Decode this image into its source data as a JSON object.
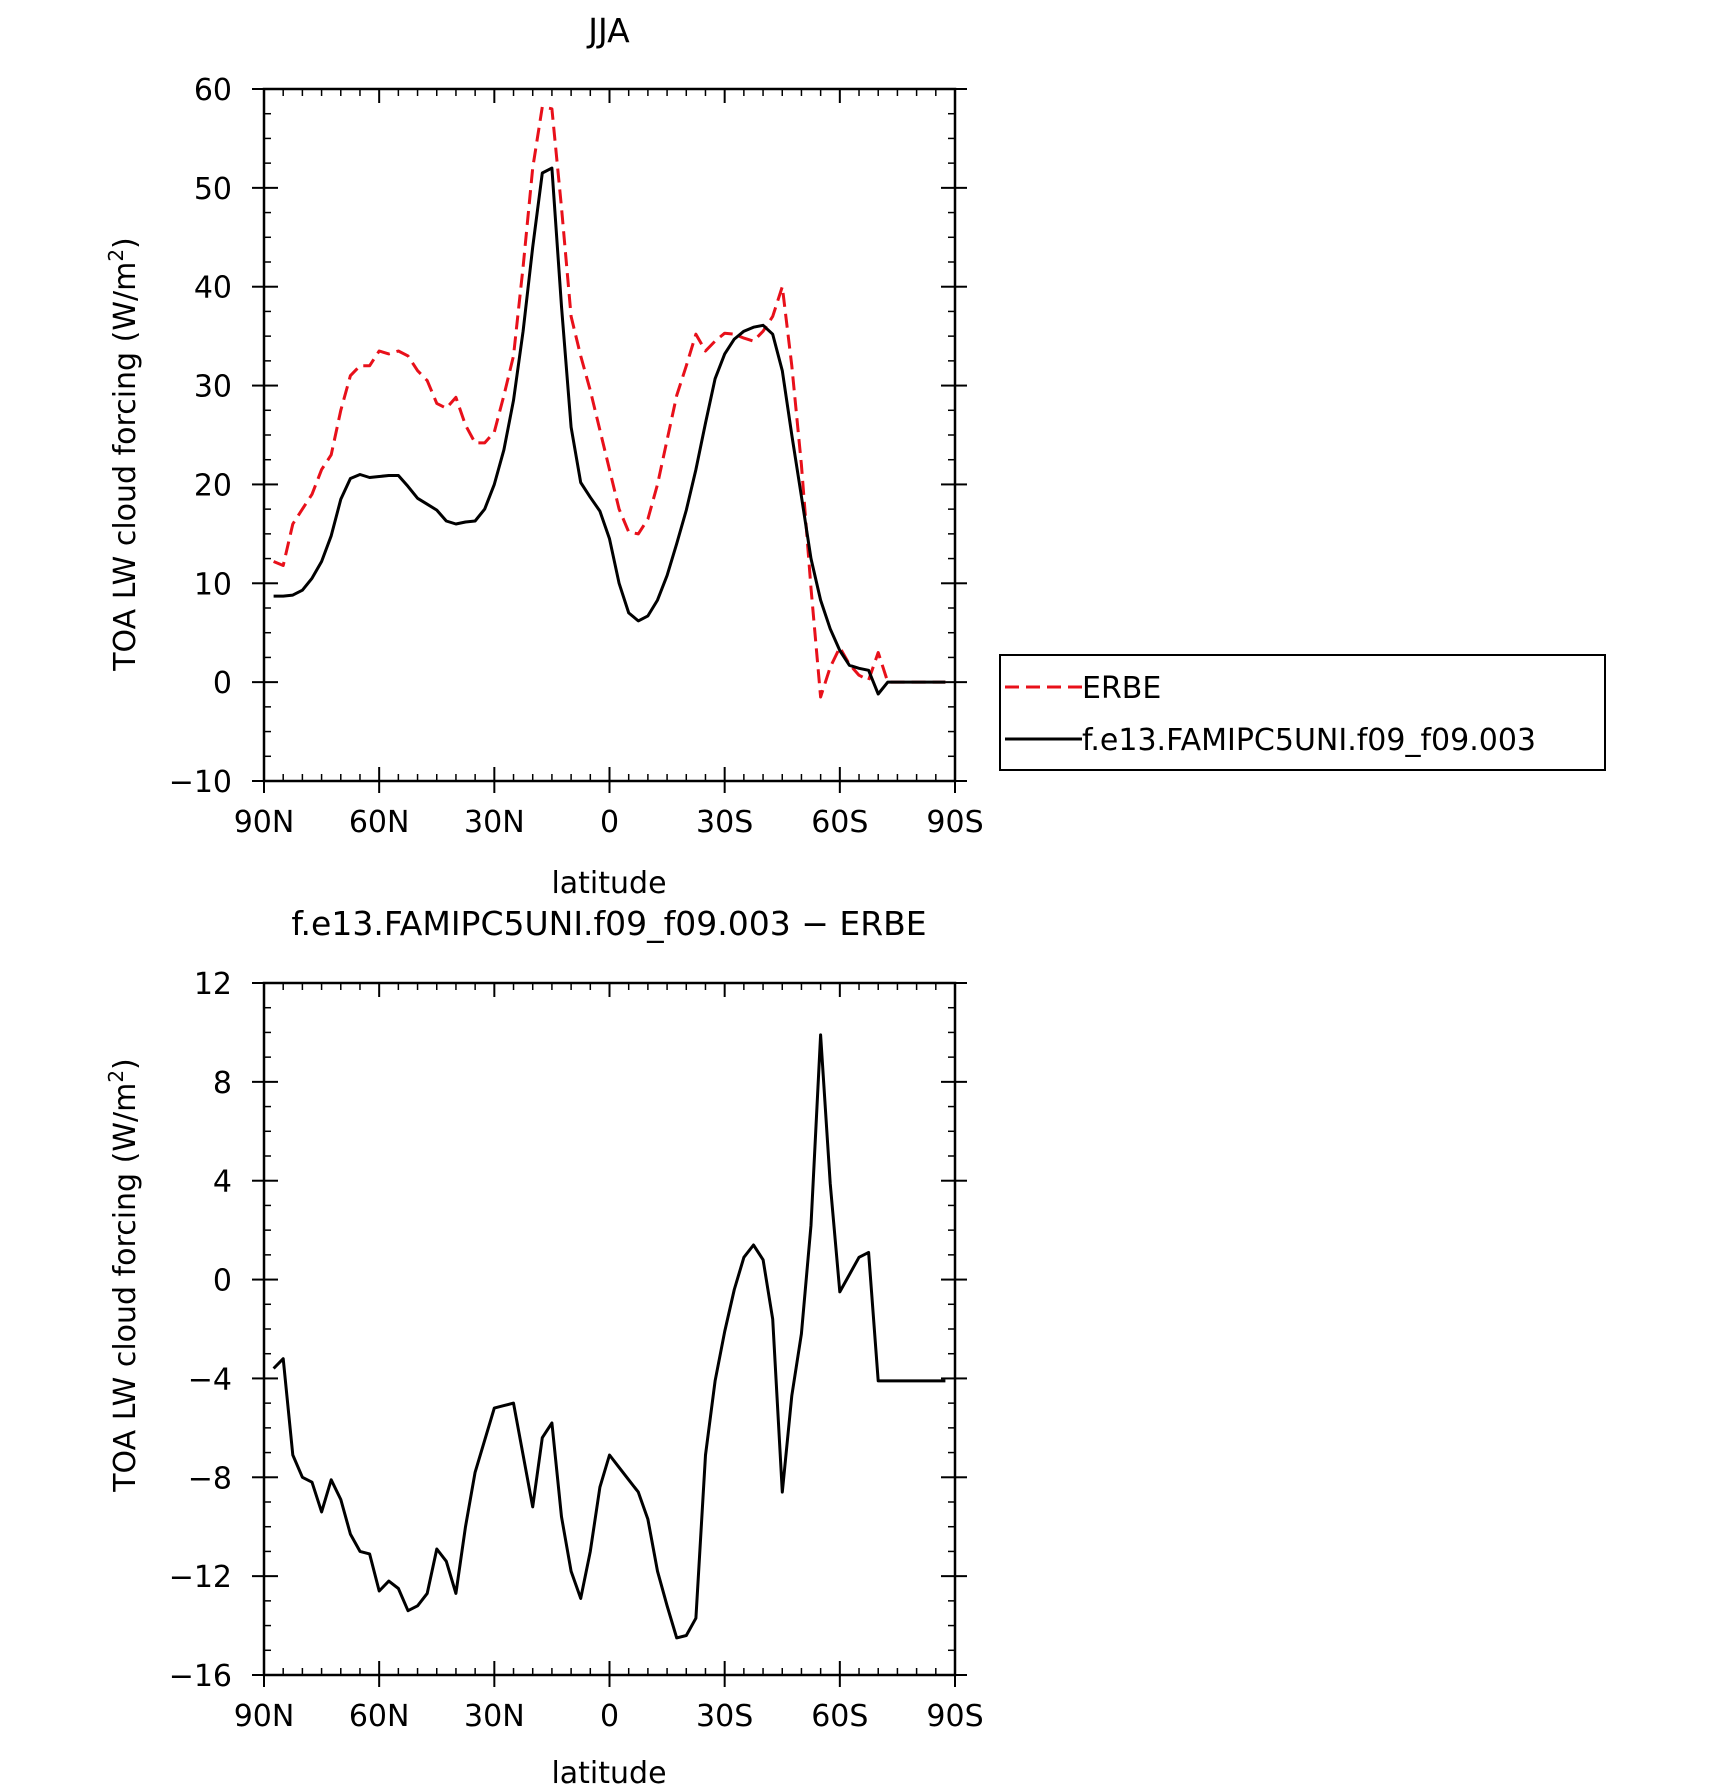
{
  "chart_data": [
    {
      "type": "line",
      "title": "JJA",
      "xlabel": "latitude",
      "ylabel": "TOA LW cloud forcing (W/m²)",
      "ylabel_main": "TOA LW cloud forcing (W/m",
      "ylabel_sup": "2",
      "ylabel_end": ")",
      "xlim": [
        90,
        -90
      ],
      "ylim": [
        -10,
        60
      ],
      "xticks": [
        90,
        60,
        30,
        0,
        -30,
        -60,
        -90
      ],
      "xtick_labels": [
        "90N",
        "60N",
        "30N",
        "0",
        "30S",
        "60S",
        "90S"
      ],
      "yticks": [
        -10,
        0,
        10,
        20,
        30,
        40,
        50,
        60
      ],
      "ytick_labels": [
        "−10",
        "0",
        "10",
        "20",
        "30",
        "40",
        "50",
        "60"
      ],
      "legend": {
        "placement": "right",
        "entries": [
          "ERBE",
          "f.e13.FAMIPC5UNI.f09_f09.003"
        ]
      },
      "series": [
        {
          "name": "ERBE",
          "color": "#e8101a",
          "dash": "dashed",
          "x": [
            87.5,
            85,
            82.5,
            80,
            77.5,
            75,
            72.5,
            70,
            67.5,
            65,
            62.5,
            60,
            57.5,
            55,
            52.5,
            50,
            47.5,
            45,
            42.5,
            40,
            37.5,
            35,
            32.5,
            30,
            27.5,
            25,
            22.5,
            20,
            17.5,
            15,
            12.5,
            10,
            7.5,
            5,
            2.5,
            0,
            -2.5,
            -5,
            -7.5,
            -10,
            -12.5,
            -15,
            -17.5,
            -20,
            -22.5,
            -25,
            -27.5,
            -30,
            -32.5,
            -35,
            -37.5,
            -40,
            -42.5,
            -45,
            -47.5,
            -50,
            -52.5,
            -55,
            -57.5,
            -60,
            -62.5,
            -65,
            -67.5,
            -70,
            -72.5,
            -75,
            -77.5,
            -80,
            -82.5,
            -85,
            -87.5
          ],
          "y": [
            12.2,
            11.8,
            16,
            17.5,
            19,
            21.5,
            23,
            27.5,
            31,
            32,
            32,
            33.5,
            33.2,
            33.5,
            33,
            31.5,
            30.5,
            28.2,
            27.7,
            28.8,
            26,
            24.2,
            24.2,
            25.3,
            29,
            33,
            42,
            52,
            58.2,
            58,
            48,
            37,
            33,
            29.5,
            25.5,
            21.5,
            17.5,
            15.2,
            15.0,
            16.5,
            20,
            24.5,
            29,
            32,
            35.2,
            33.5,
            34.5,
            35.3,
            35.2,
            34.8,
            34.5,
            35.5,
            37,
            40,
            32,
            22,
            9.5,
            -1.5,
            1.5,
            3.5,
            1.8,
            0.7,
            0.2,
            3.0,
            0.0,
            0.0,
            0.0,
            0.0,
            0.0,
            0.0,
            0.0
          ]
        },
        {
          "name": "f.e13.FAMIPC5UNI.f09_f09.003",
          "color": "#000000",
          "dash": "solid",
          "x": [
            87.5,
            85,
            82.5,
            80,
            77.5,
            75,
            72.5,
            70,
            67.5,
            65,
            62.5,
            60,
            57.5,
            55,
            52.5,
            50,
            47.5,
            45,
            42.5,
            40,
            37.5,
            35,
            32.5,
            30,
            27.5,
            25,
            22.5,
            20,
            17.5,
            15,
            12.5,
            10,
            7.5,
            5,
            2.5,
            0,
            -2.5,
            -5,
            -7.5,
            -10,
            -12.5,
            -15,
            -17.5,
            -20,
            -22.5,
            -25,
            -27.5,
            -30,
            -32.5,
            -35,
            -37.5,
            -40,
            -42.5,
            -45,
            -47.5,
            -50,
            -52.5,
            -55,
            -57.5,
            -60,
            -62.5,
            -65,
            -67.5,
            -70,
            -72.5,
            -75,
            -77.5,
            -80,
            -82.5,
            -85,
            -87.5
          ],
          "y": [
            8.7,
            8.7,
            8.8,
            9.3,
            10.5,
            12.2,
            14.8,
            18.5,
            20.6,
            21,
            20.7,
            20.8,
            20.9,
            20.9,
            19.8,
            18.6,
            18,
            17.4,
            16.3,
            16,
            16.2,
            16.3,
            17.5,
            20,
            23.5,
            28.5,
            35.5,
            44,
            51.5,
            52,
            38,
            25.8,
            20.2,
            18.7,
            17.3,
            14.5,
            10,
            7.0,
            6.2,
            6.7,
            8.3,
            10.8,
            14.0,
            17.4,
            21.5,
            26.2,
            30.7,
            33.2,
            34.7,
            35.5,
            35.9,
            36.1,
            35.2,
            31.5,
            25,
            18.8,
            12.5,
            8.3,
            5.4,
            3.2,
            1.7,
            1.4,
            1.2,
            -1.2,
            0.0,
            0.0,
            0.0,
            0.0,
            0.0,
            0.0,
            0.0
          ]
        }
      ]
    },
    {
      "type": "line",
      "title": "f.e13.FAMIPC5UNI.f09_f09.003 − ERBE",
      "xlabel": "latitude",
      "ylabel": "TOA LW cloud forcing (W/m²)",
      "ylabel_main": "TOA LW cloud forcing (W/m",
      "ylabel_sup": "2",
      "ylabel_end": ")",
      "xlim": [
        90,
        -90
      ],
      "ylim": [
        -16,
        12
      ],
      "xticks": [
        90,
        60,
        30,
        0,
        -30,
        -60,
        -90
      ],
      "xtick_labels": [
        "90N",
        "60N",
        "30N",
        "0",
        "30S",
        "60S",
        "90S"
      ],
      "yticks": [
        -16,
        -12,
        -8,
        -4,
        0,
        4,
        8,
        12
      ],
      "ytick_labels": [
        "−16",
        "−12",
        "−8",
        "−4",
        "0",
        "4",
        "8",
        "12"
      ],
      "series": [
        {
          "color": "#000000",
          "dash": "solid",
          "x": [
            87.5,
            85,
            82.5,
            80,
            77.5,
            75,
            72.5,
            70,
            67.5,
            65,
            62.5,
            60,
            57.5,
            55,
            52.5,
            50,
            47.5,
            45,
            42.5,
            40,
            37.5,
            35,
            32.5,
            30,
            27.5,
            25,
            22.5,
            20,
            17.5,
            15,
            12.5,
            10,
            7.5,
            5,
            2.5,
            0,
            -2.5,
            -5,
            -7.5,
            -10,
            -12.5,
            -15,
            -17.5,
            -20,
            -22.5,
            -25,
            -27.5,
            -30,
            -32.5,
            -35,
            -37.5,
            -40,
            -42.5,
            -45,
            -47.5,
            -50,
            -52.5,
            -55,
            -57.5,
            -60,
            -62.5,
            -65,
            -67.5,
            -70,
            -72.5,
            -75,
            -77.5,
            -80,
            -82.5,
            -85,
            -87.5
          ],
          "y": [
            -3.6,
            -3.2,
            -7.1,
            -8.0,
            -8.2,
            -9.4,
            -8.1,
            -8.9,
            -10.3,
            -11.0,
            -11.1,
            -12.6,
            -12.2,
            -12.5,
            -13.4,
            -13.2,
            -12.7,
            -10.9,
            -11.4,
            -12.7,
            -10.0,
            -7.8,
            -6.5,
            -5.2,
            -5.1,
            -5.0,
            -7.1,
            -9.2,
            -6.4,
            -5.8,
            -9.6,
            -11.8,
            -12.9,
            -11.0,
            -8.4,
            -7.1,
            -7.6,
            -8.1,
            -8.6,
            -9.7,
            -11.8,
            -13.2,
            -14.5,
            -14.4,
            -13.7,
            -7.1,
            -4.1,
            -2.1,
            -0.4,
            0.9,
            1.4,
            0.8,
            -1.6,
            -8.6,
            -4.7,
            -2.2,
            2.2,
            9.9,
            3.9,
            -0.5,
            0.2,
            0.9,
            1.1,
            -4.1,
            -4.1,
            -4.1,
            -4.1,
            -4.1,
            -4.1,
            -4.1,
            -4.1
          ]
        }
      ]
    }
  ]
}
